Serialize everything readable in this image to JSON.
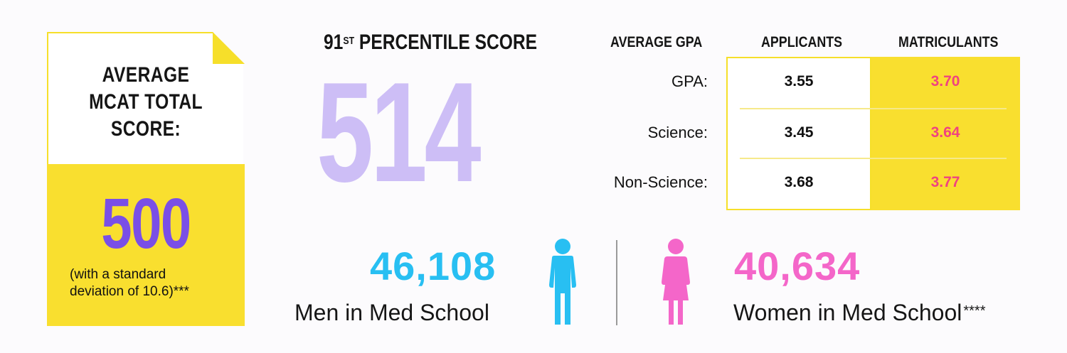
{
  "card": {
    "title_lines": [
      "AVERAGE",
      "MCAT TOTAL",
      "SCORE:"
    ],
    "value": "500",
    "note_line1": "(with a standard",
    "note_line2": "deviation of 10.6)***"
  },
  "percentile": {
    "title_num": "91",
    "title_sup": "ST",
    "title_rest": " PERCENTILE SCORE",
    "value": "514"
  },
  "gpa_table": {
    "header_label": "AVERAGE GPA",
    "columns": [
      "APPLICANTS",
      "MATRICULANTS"
    ],
    "rows": [
      {
        "label": "GPA:",
        "applicants": "3.55",
        "matriculants": "3.70"
      },
      {
        "label": "Science:",
        "applicants": "3.45",
        "matriculants": "3.64"
      },
      {
        "label": "Non-Science:",
        "applicants": "3.68",
        "matriculants": "3.77"
      }
    ]
  },
  "men": {
    "count": "46,108",
    "label": "Men in Med School"
  },
  "women": {
    "count": "40,634",
    "label": "Women in Med School",
    "footnote": "****"
  },
  "icons": {
    "men": "man-icon",
    "women": "woman-icon"
  },
  "colors": {
    "yellow": "#f9df2f",
    "purple": "#7a4fe6",
    "lavender": "#cdbef6",
    "pink_text": "#f0437f",
    "blue": "#28bff2",
    "magenta": "#f466c9"
  }
}
